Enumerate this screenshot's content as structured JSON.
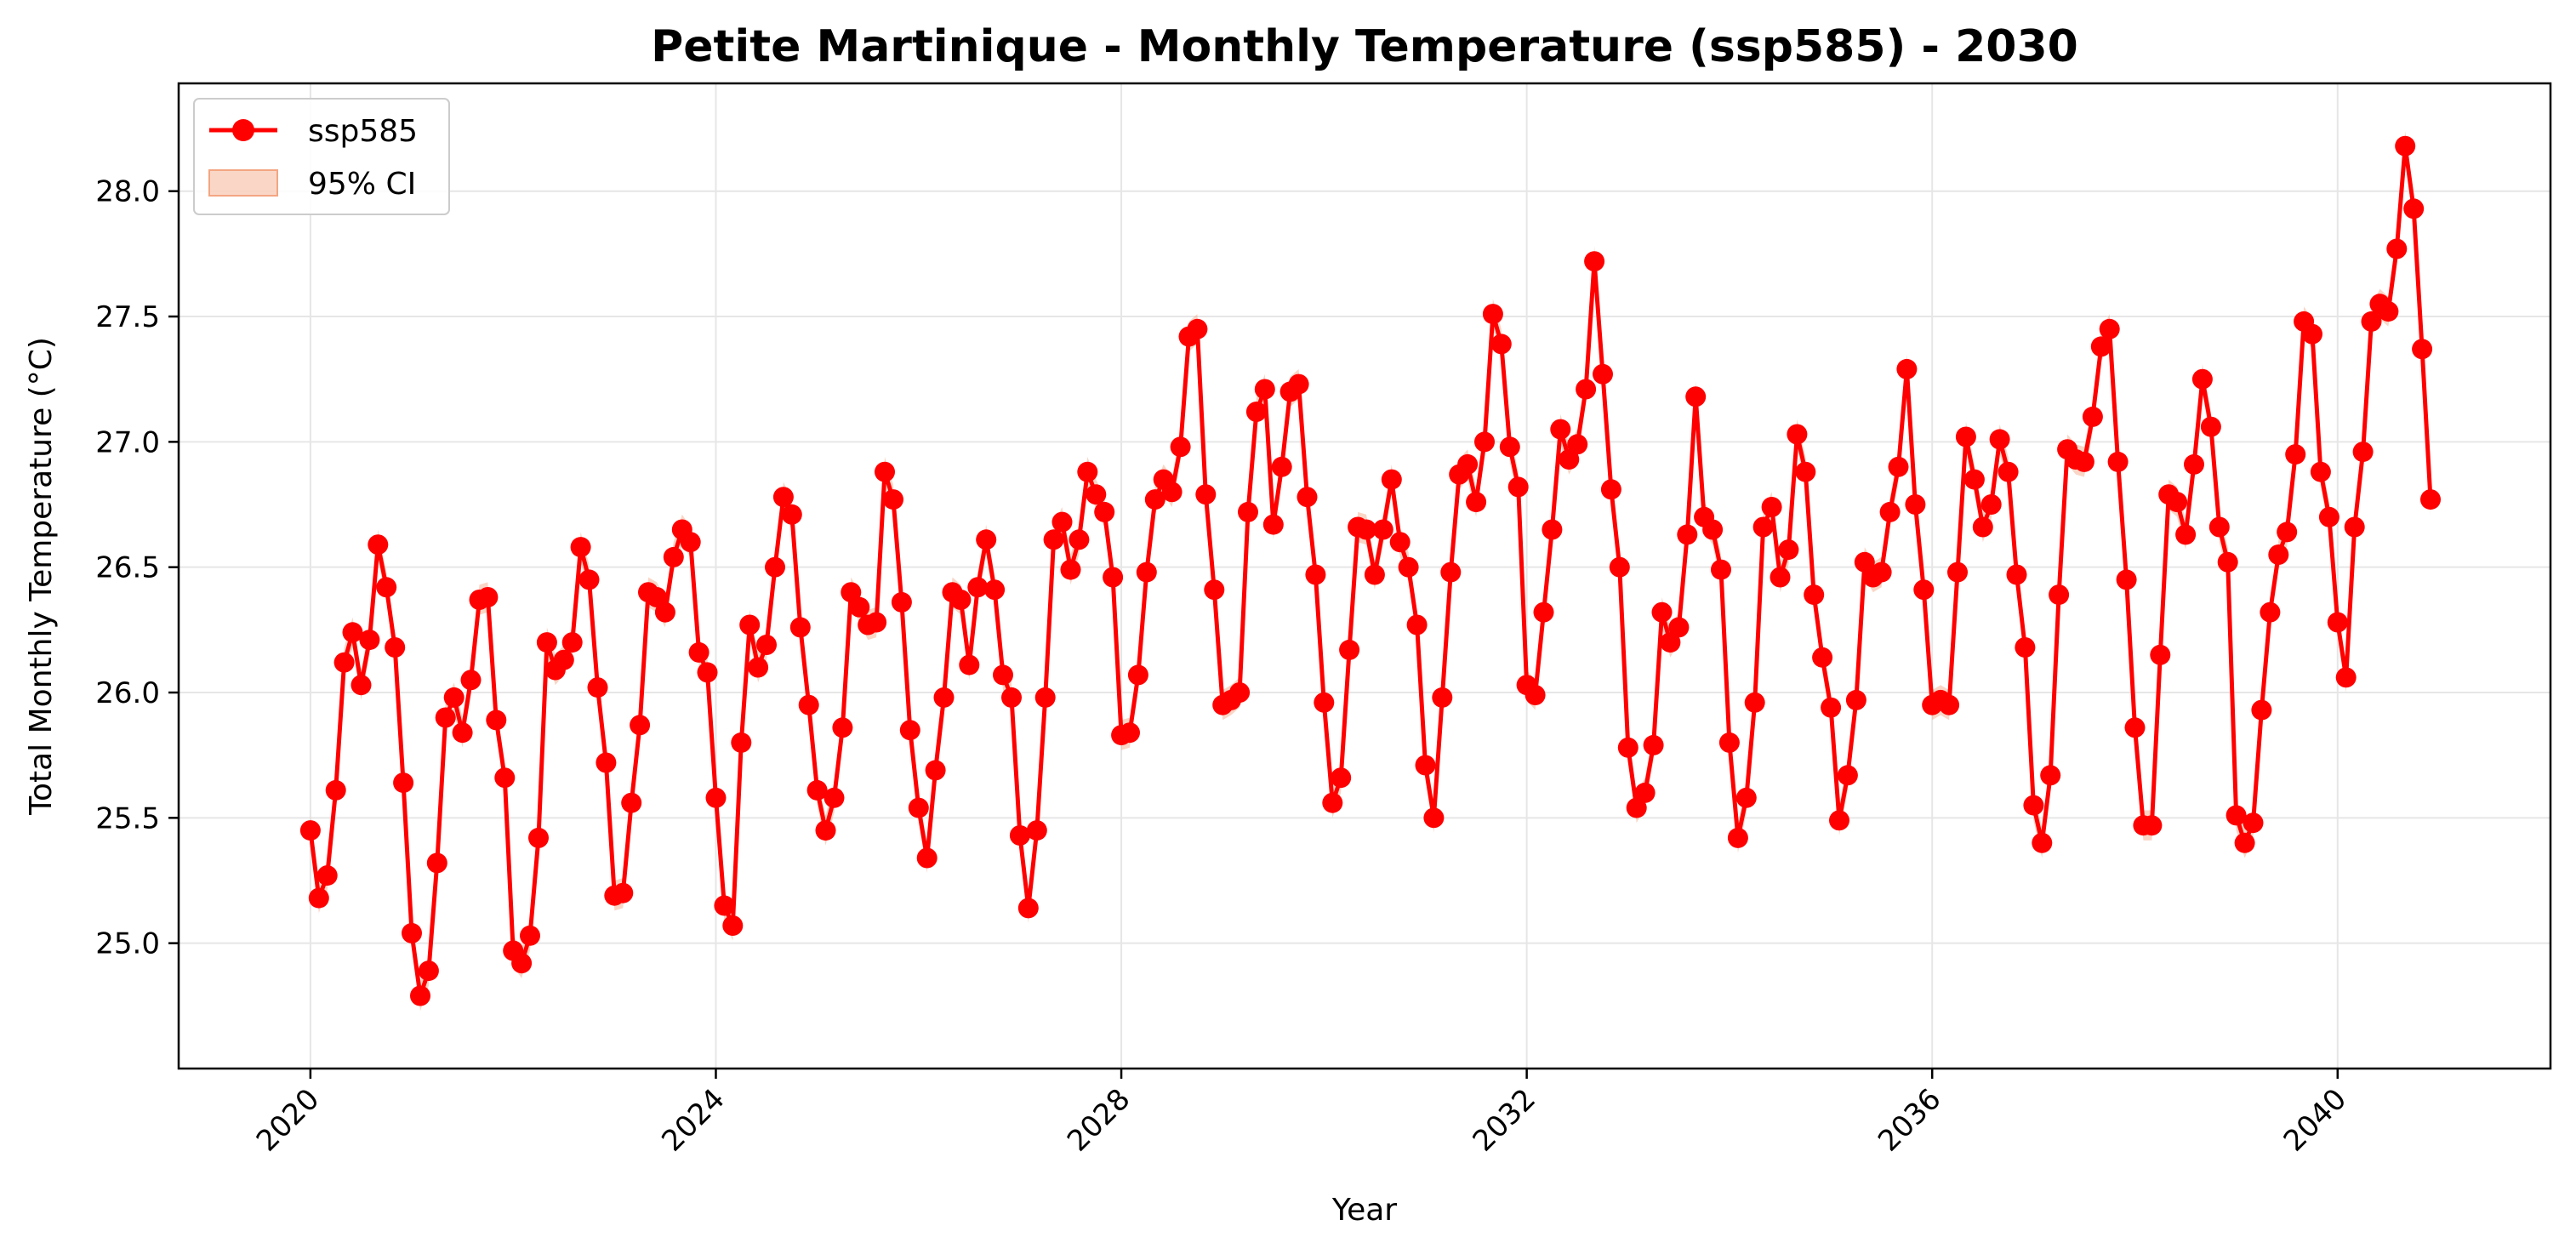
{
  "chart_data": {
    "type": "line",
    "title": "Petite Martinique - Monthly Temperature (ssp585) - 2030",
    "xlabel": "Year",
    "ylabel": "Total Monthly Temperature (°C)",
    "xlim": [
      2018.7,
      2042.1
    ],
    "ylim": [
      24.5,
      28.43
    ],
    "x_ticks": [
      2020,
      2024,
      2028,
      2032,
      2036,
      2040
    ],
    "x_tick_labels": [
      "2020",
      "2024",
      "2028",
      "2032",
      "2036",
      "2040"
    ],
    "y_ticks": [
      25.0,
      25.5,
      26.0,
      26.5,
      27.0,
      27.5,
      28.0
    ],
    "y_tick_labels": [
      "25.0",
      "25.5",
      "26.0",
      "26.5",
      "27.0",
      "27.5",
      "28.0"
    ],
    "grid": true,
    "legend_position": "top-left",
    "x_start": "2020-01",
    "x_step": "1 month",
    "colors": {
      "line": "#ff0000",
      "band": "#f4a582"
    },
    "series": [
      {
        "name": "ssp585",
        "values": [
          25.45,
          25.18,
          25.27,
          25.61,
          26.12,
          26.24,
          26.03,
          26.21,
          26.59,
          26.42,
          26.18,
          25.64,
          25.04,
          24.79,
          24.89,
          25.32,
          25.9,
          25.98,
          25.84,
          26.05,
          26.37,
          26.38,
          25.89,
          25.66,
          24.97,
          24.92,
          25.03,
          25.42,
          26.2,
          26.09,
          26.13,
          26.2,
          26.58,
          26.45,
          26.02,
          25.72,
          25.19,
          25.2,
          25.56,
          25.87,
          26.4,
          26.38,
          26.32,
          26.54,
          26.65,
          26.6,
          26.16,
          26.08,
          25.58,
          25.15,
          25.07,
          25.8,
          26.27,
          26.1,
          26.19,
          26.5,
          26.78,
          26.71,
          26.26,
          25.95,
          25.61,
          25.45,
          25.58,
          25.86,
          26.4,
          26.34,
          26.27,
          26.28,
          26.88,
          26.77,
          26.36,
          25.85,
          25.54,
          25.34,
          25.69,
          25.98,
          26.4,
          26.37,
          26.11,
          26.42,
          26.61,
          26.41,
          26.07,
          25.98,
          25.43,
          25.14,
          25.45,
          25.98,
          26.61,
          26.68,
          26.49,
          26.61,
          26.88,
          26.79,
          26.72,
          26.46,
          25.83,
          25.84,
          26.07,
          26.48,
          26.77,
          26.85,
          26.8,
          26.98,
          27.42,
          27.45,
          26.79,
          26.41,
          25.95,
          25.97,
          26.0,
          26.72,
          27.12,
          27.21,
          26.67,
          26.9,
          27.2,
          27.23,
          26.78,
          26.47,
          25.96,
          25.56,
          25.66,
          26.17,
          26.66,
          26.65,
          26.47,
          26.65,
          26.85,
          26.6,
          26.5,
          26.27,
          25.71,
          25.5,
          25.98,
          26.48,
          26.87,
          26.91,
          26.76,
          27.0,
          27.51,
          27.39,
          26.98,
          26.82,
          26.03,
          25.99,
          26.32,
          26.65,
          27.05,
          26.93,
          26.99,
          27.21,
          27.72,
          27.27,
          26.81,
          26.5,
          25.78,
          25.54,
          25.6,
          25.79,
          26.32,
          26.2,
          26.26,
          26.63,
          27.18,
          26.7,
          26.65,
          26.49,
          25.8,
          25.42,
          25.58,
          25.96,
          26.66,
          26.74,
          26.46,
          26.57,
          27.03,
          26.88,
          26.39,
          26.14,
          25.94,
          25.49,
          25.67,
          25.97,
          26.52,
          26.46,
          26.48,
          26.72,
          26.9,
          27.29,
          26.75,
          26.41,
          25.95,
          25.97,
          25.95,
          26.48,
          27.02,
          26.85,
          26.66,
          26.75,
          27.01,
          26.88,
          26.47,
          26.18,
          25.55,
          25.4,
          25.67,
          26.39,
          26.97,
          26.93,
          26.92,
          27.1,
          27.38,
          27.45,
          26.92,
          26.45,
          25.86,
          25.47,
          25.47,
          26.15,
          26.79,
          26.76,
          26.63,
          26.91,
          27.25,
          27.06,
          26.66,
          26.52,
          25.51,
          25.4,
          25.48,
          25.93,
          26.32,
          26.55,
          26.64,
          26.95,
          27.48,
          27.43,
          26.88,
          26.7,
          26.28,
          26.06,
          26.66,
          26.96,
          27.48,
          27.55,
          27.52,
          27.77,
          28.18,
          27.93,
          27.37,
          26.77
        ]
      },
      {
        "name": "95% CI",
        "half_width": 0.06
      }
    ]
  }
}
